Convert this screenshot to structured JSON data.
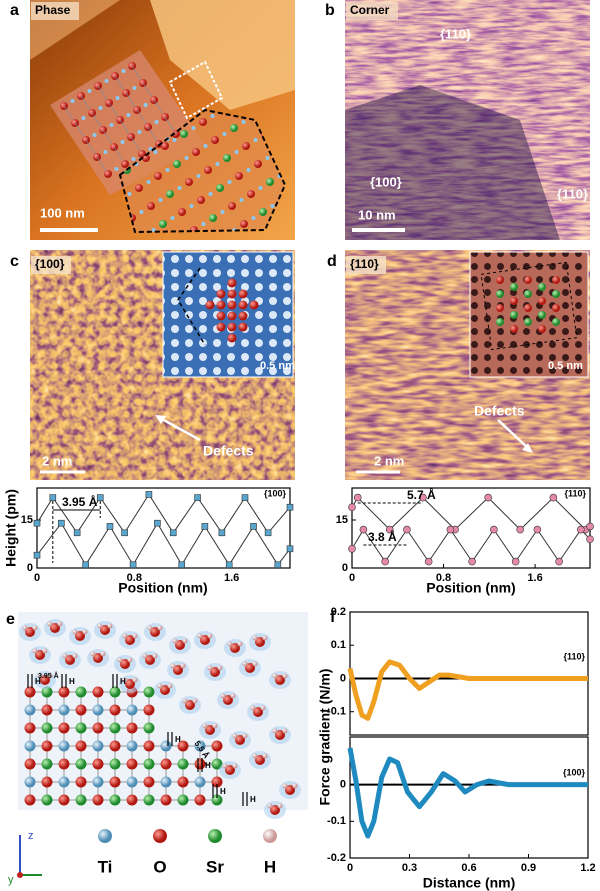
{
  "panels": {
    "a": {
      "letter": "a",
      "label": "Phase",
      "scale": "100 nm"
    },
    "b": {
      "letter": "b",
      "label": "Corner",
      "facets": [
        "{110}",
        "{100}",
        "{110}"
      ],
      "scale": "10 nm"
    },
    "c": {
      "letter": "c",
      "label": "{100}",
      "inset_scale": "0.5 nm",
      "annotation": "Defects",
      "scale": "2 nm"
    },
    "d": {
      "letter": "d",
      "label": "{110}",
      "inset_scale": "0.5 nm",
      "annotation": "Defects",
      "scale": "2 nm"
    },
    "e": {
      "letter": "e",
      "spacings": [
        "3.95 Å",
        "5.5 Å"
      ],
      "bond_label": "H",
      "axes": [
        "z",
        "y"
      ],
      "legend": [
        "Ti",
        "O",
        "Sr",
        "H"
      ]
    },
    "f": {
      "letter": "f"
    }
  },
  "chart_data": [
    {
      "type": "line",
      "marker": "square",
      "ylabel": "Height (pm)",
      "xlabel": "Position (nm)",
      "annotations": [
        "3.95 Å",
        "{100}"
      ],
      "xlim": [
        0,
        2.08
      ],
      "xticks": [
        0,
        0.8,
        1.6
      ],
      "ylim": [
        0,
        25
      ],
      "yticks": [
        0,
        15
      ],
      "series": [
        {
          "color": "#5aa6cf",
          "x": [
            0,
            0.13,
            0.33,
            0.52,
            0.72,
            0.92,
            1.12,
            1.32,
            1.52,
            1.71,
            1.9,
            2.08
          ],
          "values": [
            14,
            22,
            11,
            22,
            11,
            23,
            11,
            22,
            11,
            22,
            11,
            19
          ]
        },
        {
          "color": "#5aa6cf",
          "x": [
            0,
            0.2,
            0.4,
            0.6,
            0.79,
            0.99,
            1.19,
            1.38,
            1.58,
            1.78,
            1.98,
            2.08
          ],
          "values": [
            4,
            14,
            1,
            13,
            1,
            14,
            1,
            13,
            1,
            13,
            1,
            6
          ]
        }
      ]
    },
    {
      "type": "line",
      "marker": "circle",
      "xlabel": "Position (nm)",
      "annotations": [
        "5.7 Å",
        "{110}",
        "3.8 Å"
      ],
      "xlim": [
        0,
        2.08
      ],
      "xticks": [
        0,
        0.8,
        1.6
      ],
      "ylim": [
        0,
        25
      ],
      "yticks": [
        0,
        15
      ],
      "series": [
        {
          "color": "#e48aa8",
          "x": [
            0,
            0.05,
            0.33,
            0.62,
            0.9,
            1.19,
            1.47,
            1.76,
            2.04,
            2.08
          ],
          "values": [
            19,
            22,
            12,
            22,
            12,
            22,
            12,
            22,
            12,
            13
          ]
        },
        {
          "color": "#e48aa8",
          "x": [
            0,
            0.1,
            0.29,
            0.48,
            0.67,
            0.86,
            1.05,
            1.24,
            1.43,
            1.62,
            1.81,
            2.0,
            2.08
          ],
          "values": [
            6,
            12,
            2,
            12,
            2,
            12,
            2,
            12,
            2,
            12,
            2,
            12,
            9
          ]
        }
      ]
    },
    {
      "type": "line",
      "zero_line": true,
      "ylabel": "Force gradient (N/m)",
      "annotations": [
        "{110}"
      ],
      "xlim": [
        0,
        1.2
      ],
      "ylim": [
        -0.17,
        0.2
      ],
      "yticks": [
        0.2,
        0.1,
        0,
        -0.1
      ],
      "series": [
        {
          "color": "#f0a020",
          "x": [
            0,
            0.03,
            0.06,
            0.09,
            0.12,
            0.16,
            0.2,
            0.25,
            0.3,
            0.35,
            0.4,
            0.45,
            0.5,
            0.6,
            0.8,
            1.0,
            1.2
          ],
          "values": [
            0.03,
            -0.05,
            -0.11,
            -0.12,
            -0.07,
            0.02,
            0.05,
            0.04,
            0.0,
            -0.03,
            -0.01,
            0.01,
            0.01,
            0,
            0,
            0,
            0
          ]
        }
      ]
    },
    {
      "type": "line",
      "zero_line": true,
      "xlabel": "Distance (nm)",
      "annotations": [
        "{100}"
      ],
      "xlim": [
        0,
        1.2
      ],
      "xticks": [
        0,
        0.3,
        0.6,
        0.9,
        1.2
      ],
      "ylim": [
        -0.2,
        0.13
      ],
      "yticks": [
        0,
        -0.1,
        -0.2
      ],
      "series": [
        {
          "color": "#1f8ac0",
          "x": [
            0,
            0.03,
            0.06,
            0.09,
            0.12,
            0.16,
            0.2,
            0.24,
            0.29,
            0.35,
            0.41,
            0.47,
            0.53,
            0.58,
            0.64,
            0.7,
            0.8,
            1.0,
            1.2
          ],
          "values": [
            0.1,
            0.01,
            -0.1,
            -0.14,
            -0.1,
            0.02,
            0.07,
            0.06,
            -0.02,
            -0.06,
            -0.02,
            0.03,
            0.01,
            -0.02,
            0,
            0.01,
            0,
            0,
            0
          ]
        }
      ]
    }
  ]
}
